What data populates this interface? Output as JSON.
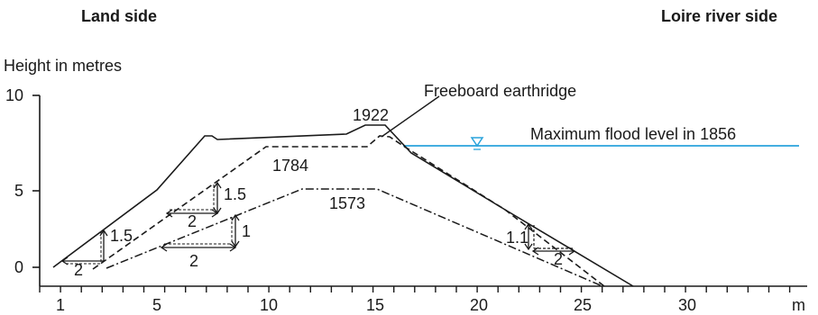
{
  "header": {
    "left_title": "Land side",
    "right_title": "Loire river side"
  },
  "axes": {
    "y_label": "Height in metres",
    "y_ticks": [
      "10",
      "5",
      "0"
    ],
    "x_ticks": [
      "1",
      "5",
      "10",
      "15",
      "20",
      "25",
      "30"
    ],
    "x_unit": "m"
  },
  "profiles": {
    "p1922": "1922",
    "p1784": "1784",
    "p1573": "1573"
  },
  "annotations": {
    "freeboard": "Freeboard earthridge",
    "flood_level": "Maximum flood level in 1856"
  },
  "slopes": {
    "s1_v": "1.5",
    "s1_h": "2",
    "s2_v": "1.5",
    "s2_h": "2",
    "s3_v": "1",
    "s3_h": "2",
    "s4_v": "1.1",
    "s4_h": "2"
  },
  "colors": {
    "flood_line": "#29a3dc",
    "ink": "#1a1a1a"
  }
}
